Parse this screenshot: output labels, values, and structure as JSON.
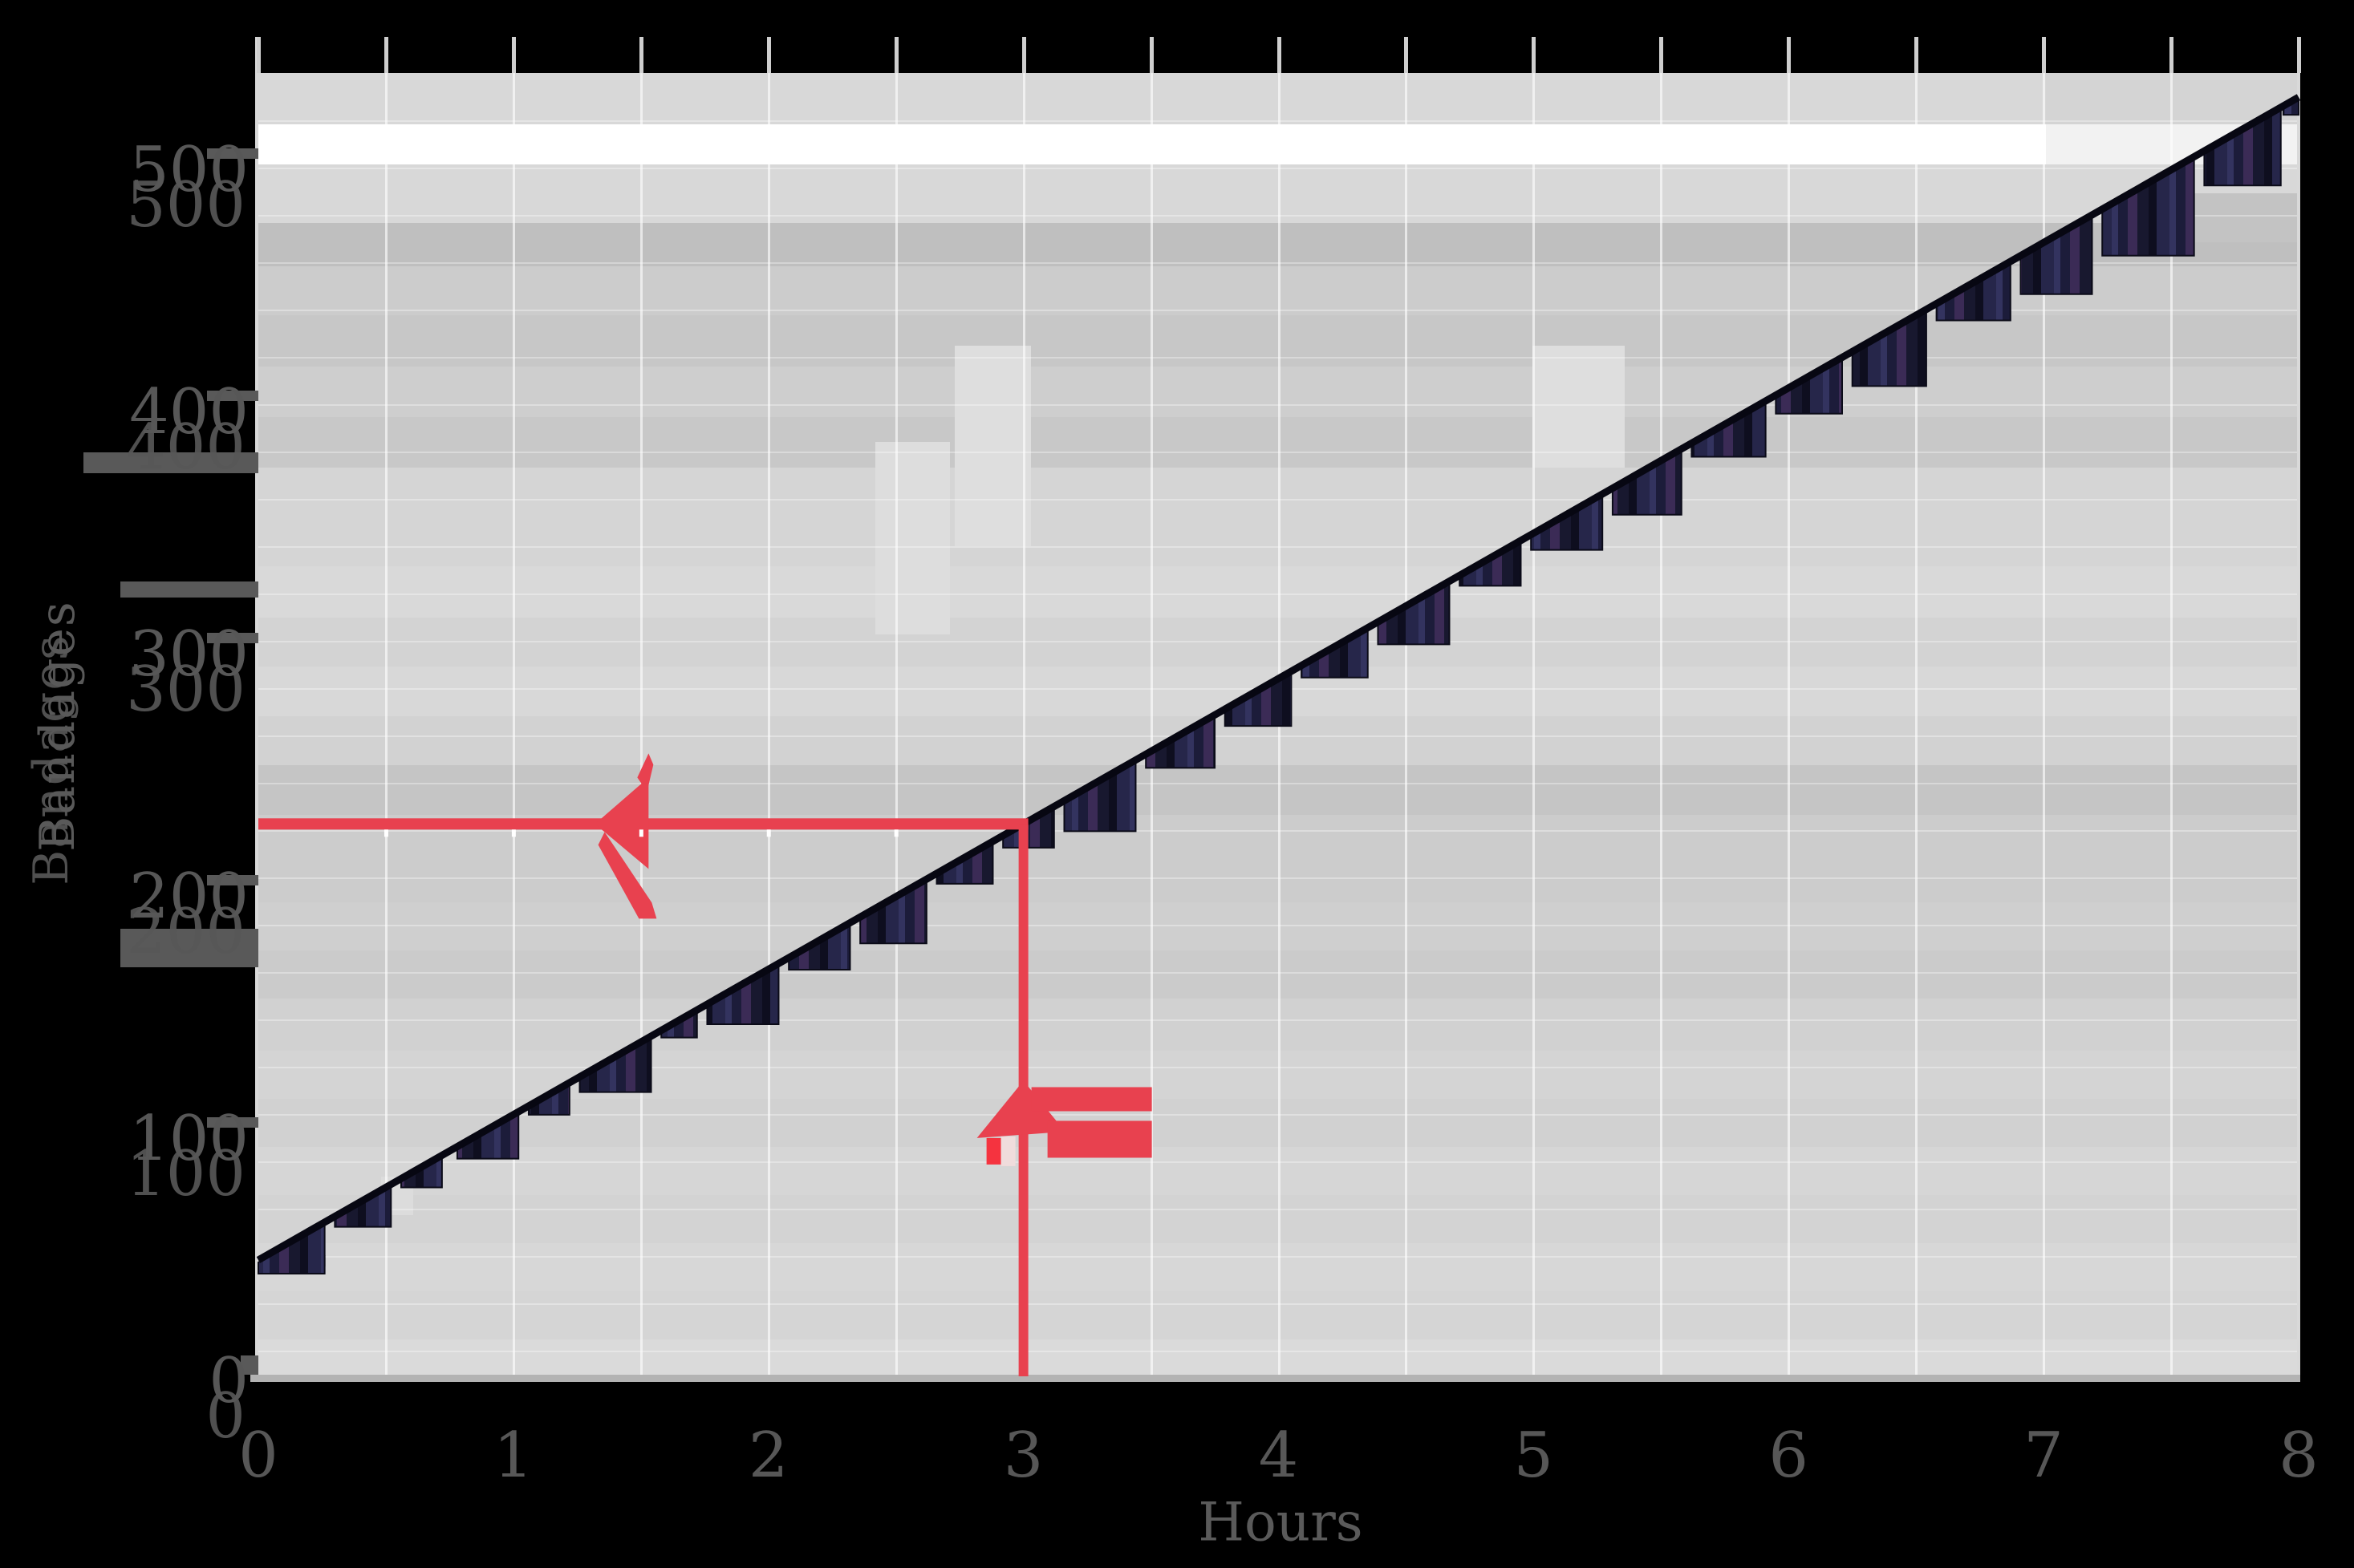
{
  "figure": {
    "background_color": "#000000",
    "plot_background_color": "#d2d2d2",
    "accent_red": "#e8414f",
    "bar_navy": "#1b1b38",
    "line_color": "#0a0a0a",
    "label_color": "#575757"
  },
  "axes": {
    "x": {
      "label": "Hours",
      "ticks": [
        "0",
        "1",
        "2",
        "3",
        "4",
        "5",
        "6",
        "7",
        "8"
      ]
    },
    "y": {
      "label": "Bandages",
      "ticks": [
        "0",
        "100",
        "200",
        "300",
        "400",
        "500"
      ]
    }
  },
  "chart_data": {
    "type": "line",
    "title": "",
    "xlabel": "Hours",
    "ylabel": "Bandages",
    "x_range": [
      0,
      8
    ],
    "y_range": [
      0,
      540
    ],
    "x_ticks": [
      0,
      1,
      2,
      3,
      4,
      5,
      6,
      7,
      8
    ],
    "y_ticks": [
      0,
      100,
      200,
      300,
      400,
      500
    ],
    "series": [
      {
        "name": "line",
        "slope": 60,
        "intercept": 50,
        "x": [
          0,
          1,
          2,
          3,
          4,
          5,
          6,
          7,
          8
        ],
        "y": [
          50,
          110,
          170,
          230,
          290,
          350,
          410,
          470,
          530
        ]
      }
    ],
    "annotation": {
      "type": "guide-arrows",
      "x": 3,
      "y": 230,
      "color": "#e8414f",
      "description": "red vertical guide at x=3 up to the line, red horizontal guide left to the y-axis at y=230, with up and left arrowheads"
    },
    "grid": "vertical gridlines every 0.5; faint horizontal gray bands",
    "legend_position": "none"
  }
}
